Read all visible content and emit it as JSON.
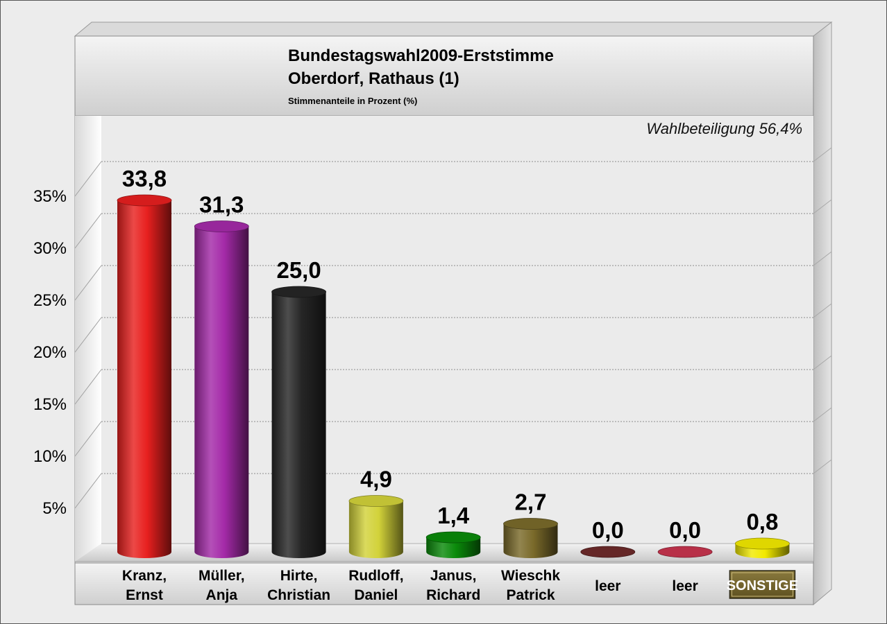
{
  "chart_data": {
    "type": "bar",
    "title": "Bundestagswahl2009-Erststimme",
    "subtitle": "Oberdorf, Rathaus (1)",
    "unit_note": "Stimmenanteile in Prozent (%)",
    "annotation": "Wahlbeteiligung 56,4%",
    "ylim": [
      0,
      35
    ],
    "yticks": [
      {
        "value": 5,
        "label": "5%"
      },
      {
        "value": 10,
        "label": "10%"
      },
      {
        "value": 15,
        "label": "15%"
      },
      {
        "value": 20,
        "label": "20%"
      },
      {
        "value": 25,
        "label": "25%"
      },
      {
        "value": 30,
        "label": "30%"
      },
      {
        "value": 35,
        "label": "35%"
      }
    ],
    "grid": true,
    "categories": [
      {
        "lines": [
          "Kranz,",
          "Ernst"
        ],
        "value": 33.8,
        "value_label": "33,8",
        "color": "#e8201f"
      },
      {
        "lines": [
          "Müller,",
          "Anja"
        ],
        "value": 31.3,
        "value_label": "31,3",
        "color": "#a42aa8"
      },
      {
        "lines": [
          "Hirte,",
          "Christian"
        ],
        "value": 25.0,
        "value_label": "25,0",
        "color": "#262626"
      },
      {
        "lines": [
          "Rudloff,",
          "Daniel"
        ],
        "value": 4.9,
        "value_label": "4,9",
        "color": "#d2d23a"
      },
      {
        "lines": [
          "Janus,",
          "Richard"
        ],
        "value": 1.4,
        "value_label": "1,4",
        "color": "#0a8a0a"
      },
      {
        "lines": [
          "Wieschk",
          "Patrick"
        ],
        "value": 2.7,
        "value_label": "2,7",
        "color": "#7a6a2a"
      },
      {
        "lines": [
          "leer"
        ],
        "value": 0.0,
        "value_label": "0,0",
        "color": "#6e2a2a"
      },
      {
        "lines": [
          "leer"
        ],
        "value": 0.0,
        "value_label": "0,0",
        "color": "#c8344e"
      },
      {
        "lines": [
          "SONSTIGE"
        ],
        "value": 0.8,
        "value_label": "0,8",
        "color": "#f2ea00",
        "badge": true
      }
    ]
  }
}
